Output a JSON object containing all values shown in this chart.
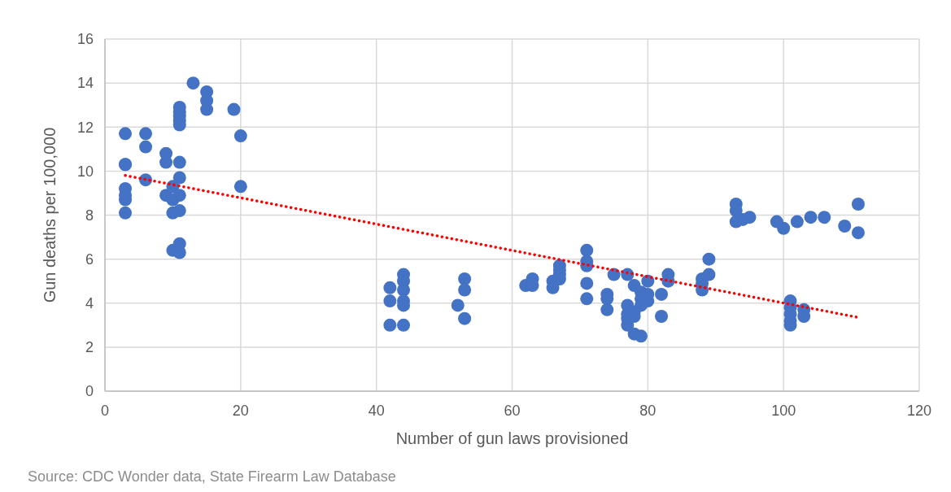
{
  "chart_data": {
    "type": "scatter",
    "xlabel": "Number of gun laws provisioned",
    "ylabel": "Gun deaths per 100,000",
    "annotations": [
      "Source: CDC Wonder data, State Firearm Law Database"
    ],
    "xlim": [
      0,
      120
    ],
    "xticks": [
      0,
      20,
      40,
      60,
      80,
      100,
      120
    ],
    "ylim": [
      0,
      16
    ],
    "yticks": [
      0,
      2,
      4,
      6,
      8,
      10,
      12,
      14,
      16
    ],
    "grid": true,
    "series": [
      {
        "color": "#4472c4",
        "marker": "circle",
        "x": [
          3,
          3,
          3,
          3,
          3,
          3,
          3,
          6,
          6,
          6,
          9,
          9,
          9,
          10,
          10,
          10,
          10,
          11,
          11,
          11,
          11,
          11,
          11,
          11,
          11,
          11,
          11,
          11,
          13,
          15,
          15,
          15,
          19,
          20,
          20,
          42,
          42,
          42,
          44,
          44,
          44,
          44,
          44,
          44,
          52,
          53,
          53,
          53,
          62,
          63,
          63,
          66,
          66,
          67,
          67,
          67,
          67,
          71,
          71,
          71,
          71,
          71,
          74,
          74,
          74,
          75,
          77,
          77,
          77,
          77,
          77,
          78,
          78,
          78,
          78,
          79,
          79,
          79,
          79,
          80,
          80,
          80,
          82,
          82,
          83,
          83,
          88,
          88,
          88,
          89,
          89,
          93,
          93,
          93,
          94,
          95,
          99,
          100,
          102,
          104,
          106,
          109,
          111,
          111,
          101,
          101,
          101,
          101,
          101,
          103,
          103
        ],
        "values": [
          11.7,
          10.3,
          10.3,
          9.2,
          8.9,
          8.7,
          8.1,
          11.7,
          11.1,
          9.6,
          10.8,
          10.4,
          8.9,
          9.3,
          8.7,
          8.1,
          6.4,
          12.9,
          12.7,
          12.5,
          12.3,
          12.1,
          10.4,
          9.7,
          8.9,
          8.2,
          6.7,
          6.3,
          14.0,
          13.6,
          13.2,
          12.8,
          12.8,
          11.6,
          9.3,
          4.7,
          4.1,
          3.0,
          5.3,
          5.0,
          4.6,
          4.1,
          3.9,
          3.0,
          3.9,
          5.1,
          4.6,
          3.3,
          4.8,
          5.1,
          4.8,
          5.0,
          4.7,
          5.7,
          5.5,
          5.3,
          5.1,
          6.4,
          5.9,
          5.7,
          4.9,
          4.2,
          4.4,
          4.2,
          3.7,
          5.3,
          5.3,
          3.9,
          3.5,
          3.3,
          3.0,
          4.8,
          3.6,
          3.4,
          2.6,
          4.5,
          4.2,
          3.9,
          2.5,
          5.0,
          4.4,
          4.1,
          4.4,
          3.4,
          5.3,
          5.0,
          5.1,
          4.9,
          4.6,
          6.0,
          5.3,
          8.5,
          8.2,
          7.7,
          7.8,
          7.9,
          7.7,
          7.4,
          7.7,
          7.9,
          7.9,
          7.5,
          8.5,
          7.2,
          4.1,
          3.8,
          3.5,
          3.2,
          3.0,
          3.7,
          3.4
        ]
      },
      {
        "type": "line",
        "color": "#ff0000",
        "line_style": "dotted",
        "marker": "none",
        "x": [
          3,
          111
        ],
        "values": [
          9.8,
          3.35
        ]
      }
    ]
  }
}
